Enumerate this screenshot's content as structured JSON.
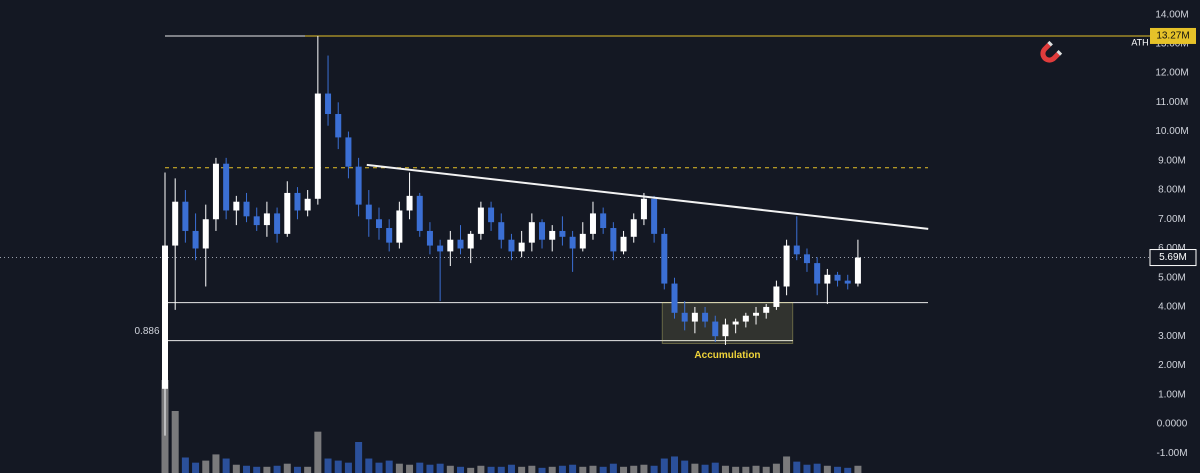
{
  "chart_data": {
    "type": "candlestick",
    "ylim": [
      -1.68,
      14.5
    ],
    "yticks": [
      {
        "value": 14,
        "label": "14.00M"
      },
      {
        "value": 13,
        "label": "13.00M"
      },
      {
        "value": 12,
        "label": "12.00M"
      },
      {
        "value": 11,
        "label": "11.00M"
      },
      {
        "value": 10,
        "label": "10.00M"
      },
      {
        "value": 9,
        "label": "9.00M"
      },
      {
        "value": 8,
        "label": "8.00M"
      },
      {
        "value": 7,
        "label": "7.00M"
      },
      {
        "value": 6,
        "label": "6.00M"
      },
      {
        "value": 5,
        "label": "5.00M"
      },
      {
        "value": 4,
        "label": "4.00M"
      },
      {
        "value": 3,
        "label": "3.00M"
      },
      {
        "value": 2,
        "label": "2.00M"
      },
      {
        "value": 1,
        "label": "1.00M"
      },
      {
        "value": 0,
        "label": "0.0000"
      },
      {
        "value": -1,
        "label": "-1.00M"
      }
    ],
    "up_color": "#ffffff",
    "down_color": "#3b6fd4",
    "volume_up_color": "#8c8c8c",
    "volume_down_color": "#2f5bb0",
    "open": [
      1.2,
      6.1,
      7.6,
      6.6,
      6.0,
      7.0,
      8.9,
      7.3,
      7.6,
      7.1,
      6.8,
      7.2,
      6.5,
      7.9,
      7.3,
      7.7,
      11.3,
      10.6,
      9.8,
      8.8,
      7.5,
      7.0,
      6.7,
      6.2,
      7.3,
      7.8,
      6.6,
      6.1,
      5.9,
      6.3,
      6.0,
      6.5,
      7.4,
      6.9,
      6.3,
      5.9,
      6.2,
      6.9,
      6.3,
      6.6,
      6.4,
      6.0,
      6.5,
      7.2,
      6.7,
      5.9,
      6.4,
      7.0,
      7.7,
      6.5,
      4.8,
      3.8,
      3.5,
      3.8,
      3.5,
      3.0,
      3.4,
      3.5,
      3.7,
      3.8,
      4.0,
      4.7,
      6.1,
      5.8,
      5.5,
      4.8,
      5.1,
      4.9,
      4.8
    ],
    "high": [
      8.6,
      8.4,
      8.0,
      7.2,
      7.5,
      9.1,
      9.1,
      7.8,
      7.9,
      7.4,
      7.6,
      7.4,
      8.3,
      8.1,
      8.0,
      13.27,
      12.6,
      11.0,
      10.0,
      9.1,
      8.0,
      7.4,
      7.0,
      7.6,
      8.6,
      7.9,
      6.9,
      6.3,
      6.6,
      6.8,
      6.6,
      7.6,
      7.6,
      7.2,
      6.5,
      6.6,
      7.2,
      7.0,
      6.8,
      7.1,
      6.6,
      6.9,
      7.6,
      7.4,
      6.9,
      6.6,
      7.2,
      7.9,
      7.8,
      6.7,
      5.0,
      4.2,
      4.0,
      4.0,
      3.7,
      3.6,
      3.6,
      3.8,
      4.0,
      4.1,
      4.9,
      6.3,
      7.1,
      6.0,
      5.7,
      5.3,
      5.2,
      5.1,
      6.3
    ],
    "low": [
      -0.4,
      3.9,
      6.2,
      5.6,
      4.7,
      6.6,
      7.0,
      6.8,
      6.9,
      6.6,
      6.4,
      6.2,
      6.4,
      7.0,
      7.1,
      7.5,
      10.2,
      9.4,
      8.4,
      7.1,
      6.4,
      6.3,
      5.9,
      6.0,
      7.0,
      6.4,
      5.8,
      4.2,
      5.4,
      5.8,
      5.5,
      6.3,
      6.6,
      6.0,
      5.6,
      5.7,
      5.9,
      6.0,
      5.9,
      6.1,
      5.2,
      5.9,
      6.3,
      6.5,
      5.6,
      5.8,
      6.2,
      6.8,
      6.2,
      4.6,
      3.6,
      3.2,
      3.1,
      3.3,
      2.8,
      2.7,
      3.1,
      3.3,
      3.4,
      3.6,
      3.9,
      4.4,
      5.6,
      5.2,
      4.4,
      4.1,
      4.7,
      4.6,
      4.7
    ],
    "close": [
      6.1,
      7.6,
      6.6,
      6.0,
      7.0,
      8.9,
      7.3,
      7.6,
      7.1,
      6.8,
      7.2,
      6.5,
      7.9,
      7.3,
      7.7,
      11.3,
      10.6,
      9.8,
      8.8,
      7.5,
      7.0,
      6.7,
      6.2,
      7.3,
      7.8,
      6.6,
      6.1,
      5.9,
      6.3,
      6.0,
      6.5,
      7.4,
      6.9,
      6.3,
      5.9,
      6.2,
      6.9,
      6.3,
      6.6,
      6.4,
      6.0,
      6.5,
      7.2,
      6.7,
      5.9,
      6.4,
      7.0,
      7.7,
      6.5,
      4.8,
      3.8,
      3.5,
      3.8,
      3.5,
      3.0,
      3.4,
      3.5,
      3.7,
      3.8,
      4.0,
      4.7,
      6.1,
      5.8,
      5.5,
      4.8,
      5.1,
      4.9,
      4.8,
      5.69
    ],
    "volume": [
      90,
      60,
      15,
      10,
      12,
      18,
      14,
      8,
      7,
      6,
      6,
      7,
      9,
      6,
      6,
      40,
      14,
      12,
      10,
      30,
      14,
      10,
      12,
      9,
      8,
      10,
      8,
      9,
      7,
      6,
      5,
      7,
      6,
      6,
      8,
      6,
      7,
      5,
      6,
      7,
      8,
      6,
      7,
      6,
      9,
      6,
      7,
      8,
      7,
      14,
      16,
      12,
      9,
      8,
      10,
      7,
      6,
      6,
      7,
      6,
      9,
      16,
      11,
      8,
      9,
      7,
      6,
      5,
      7
    ],
    "ath": {
      "value": 13.27,
      "label": "13.27M",
      "text": "ATH"
    },
    "last_price": {
      "value": 5.69,
      "label": "5.69M"
    },
    "resistance_level": 8.76,
    "support_level": 4.15,
    "fib_level": {
      "value": 2.85,
      "label": "0.886"
    },
    "trendline": {
      "x": [
        19.8,
        74.9
      ],
      "values": [
        8.86,
        6.67
      ]
    },
    "accumulation": {
      "x": [
        48.8,
        61.6
      ],
      "range": [
        2.75,
        4.15
      ],
      "label": "Accumulation"
    }
  }
}
